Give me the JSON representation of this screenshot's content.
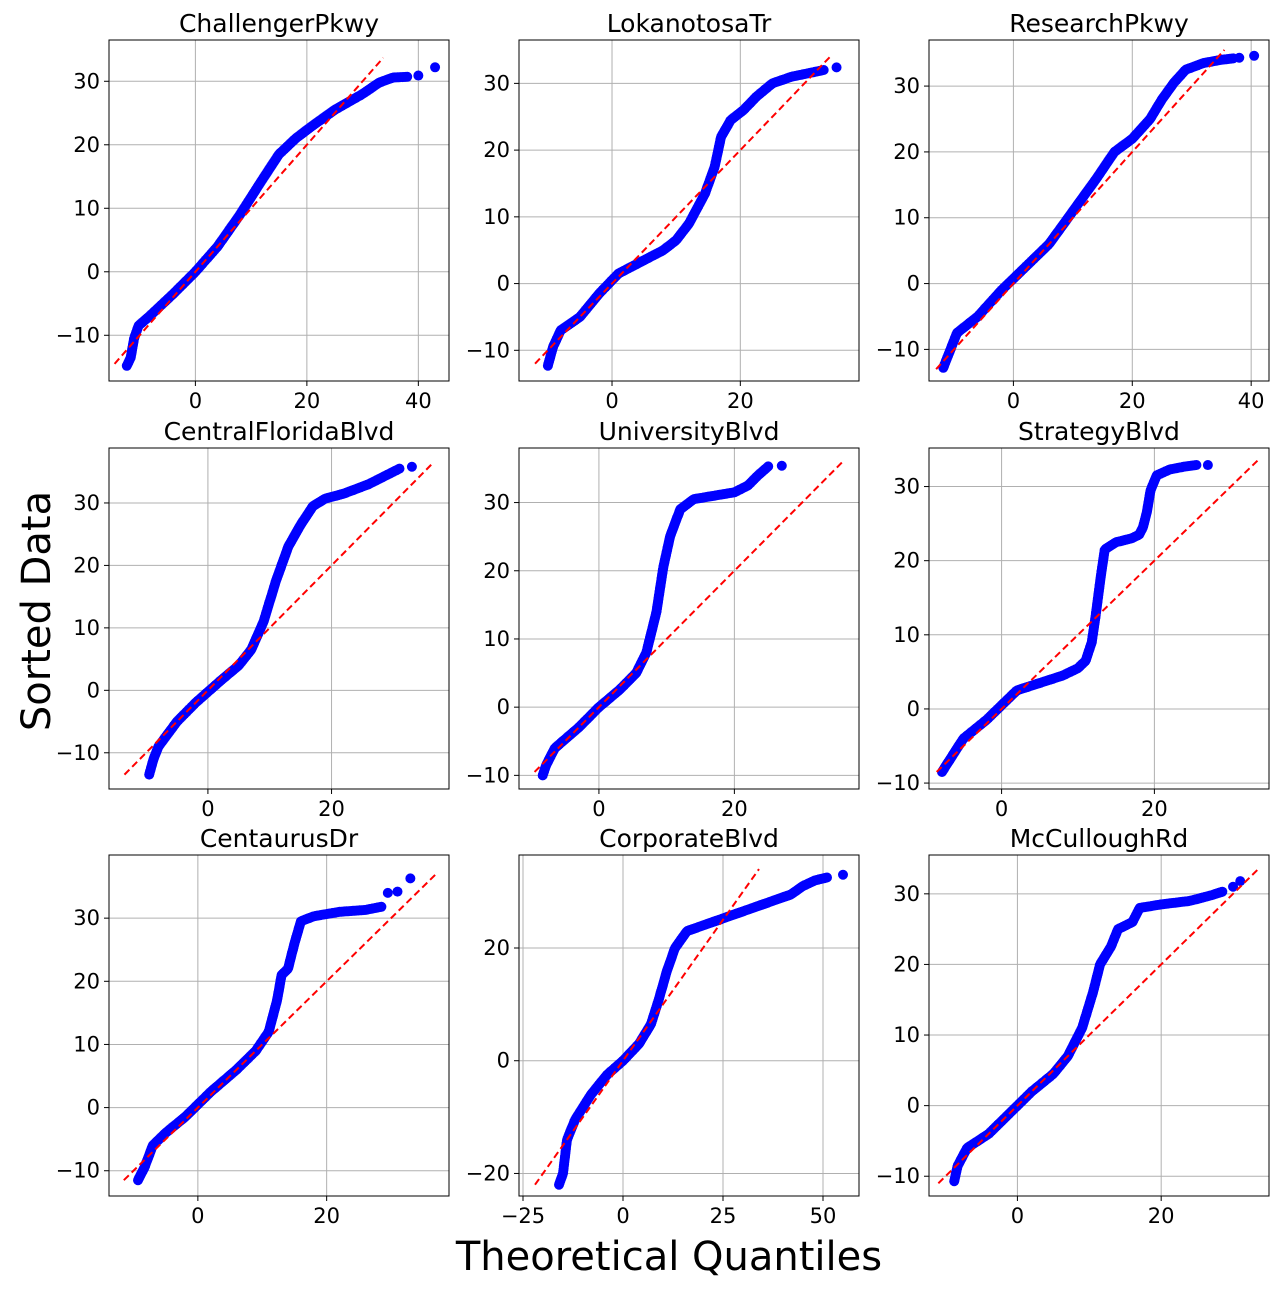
{
  "figure": {
    "xlabel": "Theoretical Quantiles",
    "ylabel": "Sorted Data"
  },
  "colors": {
    "points": "#0000ff",
    "reference_line": "#ff0000",
    "grid": "#b0b0b0",
    "axes": "#000000"
  },
  "chart_data": [
    {
      "type": "scatter",
      "title": "ChallengerPkwy",
      "xlim": [
        -15.5,
        45.5
      ],
      "ylim": [
        -17.2,
        36.5
      ],
      "xticks": [
        0,
        20,
        40
      ],
      "yticks": [
        -10,
        0,
        10,
        20,
        30
      ],
      "ref_line": [
        [
          -14.5,
          -14.5
        ],
        [
          33.7,
          33.7
        ]
      ],
      "curve": [
        [
          -12.3,
          -14.8
        ],
        [
          -11.6,
          -13.5
        ],
        [
          -11.0,
          -10.5
        ],
        [
          -10.2,
          -8.5
        ],
        [
          -8.0,
          -6.8
        ],
        [
          -4.0,
          -3.5
        ],
        [
          0.0,
          0.0
        ],
        [
          4.0,
          4.0
        ],
        [
          8.0,
          9.0
        ],
        [
          12.0,
          14.5
        ],
        [
          15.0,
          18.5
        ],
        [
          18.0,
          21.0
        ],
        [
          21.0,
          23.0
        ],
        [
          25.0,
          25.5
        ],
        [
          30.0,
          28.0
        ],
        [
          33.0,
          29.8
        ],
        [
          35.5,
          30.6
        ],
        [
          38.0,
          30.7
        ]
      ],
      "outliers": [
        [
          40.0,
          30.9
        ],
        [
          43.0,
          32.2
        ]
      ]
    },
    {
      "type": "scatter",
      "title": "LokanotosaTr",
      "xlim": [
        -14.5,
        38.5
      ],
      "ylim": [
        -14.6,
        36.5
      ],
      "xticks": [
        0,
        20
      ],
      "yticks": [
        -10,
        0,
        10,
        20,
        30
      ],
      "ref_line": [
        [
          -12.0,
          -12.0
        ],
        [
          34.0,
          34.0
        ]
      ],
      "curve": [
        [
          -10.0,
          -12.3
        ],
        [
          -9.2,
          -9.5
        ],
        [
          -8.0,
          -7.0
        ],
        [
          -5.0,
          -5.0
        ],
        [
          -2.0,
          -1.5
        ],
        [
          1.0,
          1.5
        ],
        [
          5.0,
          3.5
        ],
        [
          8.0,
          5.0
        ],
        [
          10.0,
          6.5
        ],
        [
          12.0,
          9.0
        ],
        [
          14.5,
          13.5
        ],
        [
          16.0,
          17.5
        ],
        [
          17.0,
          22.0
        ],
        [
          18.5,
          24.5
        ],
        [
          20.5,
          26.0
        ],
        [
          22.5,
          28.0
        ],
        [
          25.0,
          30.0
        ],
        [
          28.0,
          31.0
        ],
        [
          31.0,
          31.6
        ],
        [
          33.0,
          32.0
        ]
      ],
      "outliers": [
        [
          35.0,
          32.4
        ]
      ]
    },
    {
      "type": "scatter",
      "title": "ResearchPkwy",
      "xlim": [
        -14.2,
        43.0
      ],
      "ylim": [
        -14.8,
        37.0
      ],
      "xticks": [
        0,
        20,
        40
      ],
      "yticks": [
        -10,
        0,
        10,
        20,
        30
      ],
      "ref_line": [
        [
          -13.0,
          -13.0
        ],
        [
          35.5,
          35.5
        ]
      ],
      "curve": [
        [
          -11.8,
          -12.8
        ],
        [
          -10.8,
          -10.5
        ],
        [
          -9.5,
          -7.5
        ],
        [
          -6.0,
          -5.0
        ],
        [
          -2.0,
          -1.0
        ],
        [
          2.0,
          2.5
        ],
        [
          6.0,
          6.0
        ],
        [
          10.0,
          11.0
        ],
        [
          14.0,
          16.0
        ],
        [
          17.0,
          20.0
        ],
        [
          20.0,
          22.0
        ],
        [
          23.0,
          25.0
        ],
        [
          25.0,
          28.0
        ],
        [
          27.0,
          30.5
        ],
        [
          29.0,
          32.5
        ],
        [
          32.0,
          33.5
        ],
        [
          35.0,
          34.0
        ],
        [
          37.0,
          34.2
        ]
      ],
      "outliers": [
        [
          38.0,
          34.3
        ],
        [
          40.5,
          34.6
        ]
      ]
    },
    {
      "type": "scatter",
      "title": "CentralFloridaBlvd",
      "xlim": [
        -16.0,
        39.0
      ],
      "ylim": [
        -15.8,
        38.8
      ],
      "xticks": [
        0,
        20
      ],
      "yticks": [
        -10,
        0,
        10,
        20,
        30
      ],
      "ref_line": [
        [
          -13.5,
          -13.5
        ],
        [
          36.5,
          36.5
        ]
      ],
      "curve": [
        [
          -9.5,
          -13.5
        ],
        [
          -8.8,
          -11.0
        ],
        [
          -8.0,
          -9.0
        ],
        [
          -5.0,
          -5.0
        ],
        [
          -2.0,
          -2.0
        ],
        [
          2.0,
          1.5
        ],
        [
          5.0,
          4.0
        ],
        [
          7.0,
          6.5
        ],
        [
          9.0,
          11.0
        ],
        [
          11.0,
          17.5
        ],
        [
          13.0,
          23.0
        ],
        [
          15.0,
          26.5
        ],
        [
          17.0,
          29.5
        ],
        [
          19.0,
          30.7
        ],
        [
          22.0,
          31.5
        ],
        [
          26.0,
          33.0
        ],
        [
          29.0,
          34.5
        ],
        [
          31.0,
          35.5
        ]
      ],
      "outliers": [
        [
          33.0,
          35.8
        ]
      ]
    },
    {
      "type": "scatter",
      "title": "UniversityBlvd",
      "xlim": [
        -11.8,
        38.4
      ],
      "ylim": [
        -12.0,
        38.0
      ],
      "xticks": [
        0,
        20
      ],
      "yticks": [
        -10,
        0,
        10,
        20,
        30
      ],
      "ref_line": [
        [
          -9.5,
          -9.5
        ],
        [
          36.0,
          36.0
        ]
      ],
      "curve": [
        [
          -8.3,
          -10.0
        ],
        [
          -7.8,
          -8.5
        ],
        [
          -6.5,
          -6.0
        ],
        [
          -3.0,
          -3.0
        ],
        [
          0.0,
          0.0
        ],
        [
          3.0,
          2.5
        ],
        [
          5.5,
          5.0
        ],
        [
          7.0,
          8.0
        ],
        [
          8.5,
          14.0
        ],
        [
          9.5,
          20.5
        ],
        [
          10.5,
          25.0
        ],
        [
          12.0,
          29.0
        ],
        [
          14.0,
          30.5
        ],
        [
          17.0,
          31.0
        ],
        [
          20.0,
          31.5
        ],
        [
          22.0,
          32.5
        ],
        [
          23.5,
          34.0
        ],
        [
          25.0,
          35.3
        ]
      ],
      "outliers": [
        [
          27.0,
          35.4
        ]
      ]
    },
    {
      "type": "scatter",
      "title": "StrategyBlvd",
      "xlim": [
        -9.5,
        35.0
      ],
      "ylim": [
        -10.8,
        35.2
      ],
      "xticks": [
        0,
        20
      ],
      "yticks": [
        -10,
        0,
        10,
        20,
        30
      ],
      "ref_line": [
        [
          -8.5,
          -8.5
        ],
        [
          33.5,
          33.5
        ]
      ],
      "curve": [
        [
          -7.8,
          -8.5
        ],
        [
          -7.0,
          -7.2
        ],
        [
          -5.0,
          -4.0
        ],
        [
          -2.0,
          -1.5
        ],
        [
          0.0,
          0.5
        ],
        [
          2.0,
          2.5
        ],
        [
          5.0,
          3.5
        ],
        [
          8.0,
          4.5
        ],
        [
          10.0,
          5.5
        ],
        [
          11.0,
          6.5
        ],
        [
          11.8,
          9.0
        ],
        [
          12.3,
          12.5
        ],
        [
          13.0,
          18.0
        ],
        [
          13.5,
          21.5
        ],
        [
          15.0,
          22.5
        ],
        [
          17.0,
          23.0
        ],
        [
          18.0,
          23.5
        ],
        [
          18.5,
          24.5
        ],
        [
          19.0,
          26.5
        ],
        [
          19.5,
          29.5
        ],
        [
          20.3,
          31.5
        ],
        [
          22.0,
          32.3
        ],
        [
          24.0,
          32.7
        ],
        [
          25.5,
          32.9
        ]
      ],
      "outliers": [
        [
          27.0,
          32.9
        ]
      ]
    },
    {
      "type": "scatter",
      "title": "CentaurusDr",
      "xlim": [
        -13.8,
        39.0
      ],
      "ylim": [
        -14.0,
        40.0
      ],
      "xticks": [
        0,
        20
      ],
      "yticks": [
        -10,
        0,
        10,
        20,
        30
      ],
      "ref_line": [
        [
          -11.5,
          -11.5
        ],
        [
          37.0,
          37.0
        ]
      ],
      "curve": [
        [
          -9.3,
          -11.5
        ],
        [
          -8.3,
          -9.5
        ],
        [
          -7.0,
          -6.0
        ],
        [
          -5.0,
          -4.0
        ],
        [
          -2.0,
          -1.5
        ],
        [
          2.0,
          2.5
        ],
        [
          6.0,
          6.0
        ],
        [
          9.0,
          9.0
        ],
        [
          11.0,
          12.0
        ],
        [
          12.3,
          17.0
        ],
        [
          13.0,
          21.0
        ],
        [
          14.0,
          22.0
        ],
        [
          15.0,
          26.0
        ],
        [
          16.0,
          29.5
        ],
        [
          18.0,
          30.3
        ],
        [
          22.0,
          31.0
        ],
        [
          26.0,
          31.3
        ],
        [
          28.5,
          31.8
        ]
      ],
      "outliers": [
        [
          29.5,
          34.0
        ],
        [
          31.0,
          34.2
        ],
        [
          33.0,
          36.3
        ]
      ]
    },
    {
      "type": "scatter",
      "title": "CorporateBlvd",
      "xlim": [
        -26.0,
        59.0
      ],
      "ylim": [
        -24.0,
        36.5
      ],
      "xticks": [
        -25,
        0,
        25,
        50
      ],
      "yticks": [
        -20,
        0,
        20
      ],
      "ref_line": [
        [
          -22.0,
          -22.0
        ],
        [
          34.0,
          34.0
        ]
      ],
      "curve": [
        [
          -16.0,
          -22.0
        ],
        [
          -15.0,
          -20.0
        ],
        [
          -14.0,
          -14.0
        ],
        [
          -12.0,
          -10.5
        ],
        [
          -8.0,
          -6.0
        ],
        [
          -4.0,
          -2.5
        ],
        [
          0.0,
          0.0
        ],
        [
          4.0,
          3.0
        ],
        [
          7.0,
          6.5
        ],
        [
          9.0,
          11.0
        ],
        [
          11.0,
          16.0
        ],
        [
          13.0,
          20.0
        ],
        [
          16.0,
          23.0
        ],
        [
          20.0,
          24.0
        ],
        [
          26.0,
          25.5
        ],
        [
          32.0,
          27.0
        ],
        [
          38.0,
          28.5
        ],
        [
          42.0,
          29.5
        ],
        [
          45.0,
          31.0
        ],
        [
          48.0,
          32.0
        ],
        [
          51.0,
          32.5
        ]
      ],
      "outliers": [
        [
          55.0,
          33.0
        ]
      ]
    },
    {
      "type": "scatter",
      "title": "McCulloughRd",
      "xlim": [
        -12.3,
        35.0
      ],
      "ylim": [
        -12.8,
        35.5
      ],
      "xticks": [
        0,
        20
      ],
      "yticks": [
        -10,
        0,
        10,
        20,
        30
      ],
      "ref_line": [
        [
          -11.0,
          -11.0
        ],
        [
          33.5,
          33.5
        ]
      ],
      "curve": [
        [
          -8.8,
          -10.7
        ],
        [
          -8.3,
          -8.5
        ],
        [
          -7.0,
          -6.0
        ],
        [
          -4.0,
          -4.0
        ],
        [
          -1.0,
          -1.0
        ],
        [
          2.0,
          2.0
        ],
        [
          5.0,
          4.5
        ],
        [
          7.0,
          7.0
        ],
        [
          9.0,
          11.0
        ],
        [
          10.5,
          16.0
        ],
        [
          11.5,
          20.0
        ],
        [
          13.0,
          22.5
        ],
        [
          14.0,
          25.0
        ],
        [
          16.0,
          26.0
        ],
        [
          17.0,
          28.0
        ],
        [
          20.0,
          28.5
        ],
        [
          24.0,
          29.0
        ],
        [
          27.0,
          29.8
        ],
        [
          28.5,
          30.3
        ]
      ],
      "outliers": [
        [
          30.0,
          31.0
        ],
        [
          31.0,
          31.8
        ]
      ]
    }
  ]
}
